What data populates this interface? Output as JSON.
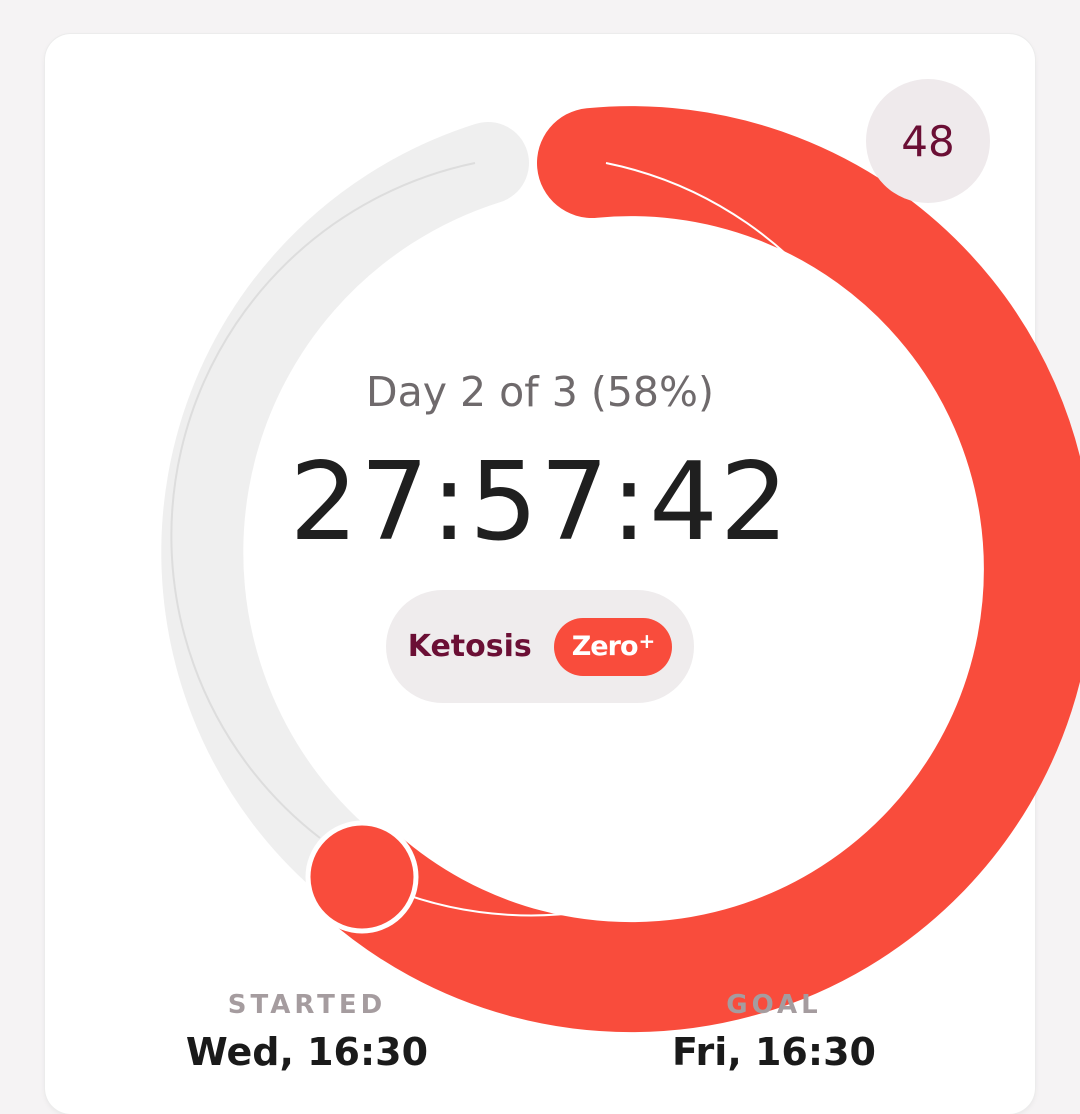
{
  "hours_badge": "48",
  "progress": {
    "day_text": "Day 2 of 3 (58%)",
    "percent": 58,
    "timer": "27:57:42"
  },
  "stage": {
    "label": "Ketosis",
    "badge": "Zero",
    "badge_sup": "+"
  },
  "started": {
    "label": "STARTED",
    "value": "Wed, 16:30"
  },
  "goal": {
    "label": "GOAL",
    "value": "Fri, 16:30"
  },
  "colors": {
    "accent": "#f94c3c",
    "track": "#efefef",
    "brand_text": "#6b0f35"
  }
}
